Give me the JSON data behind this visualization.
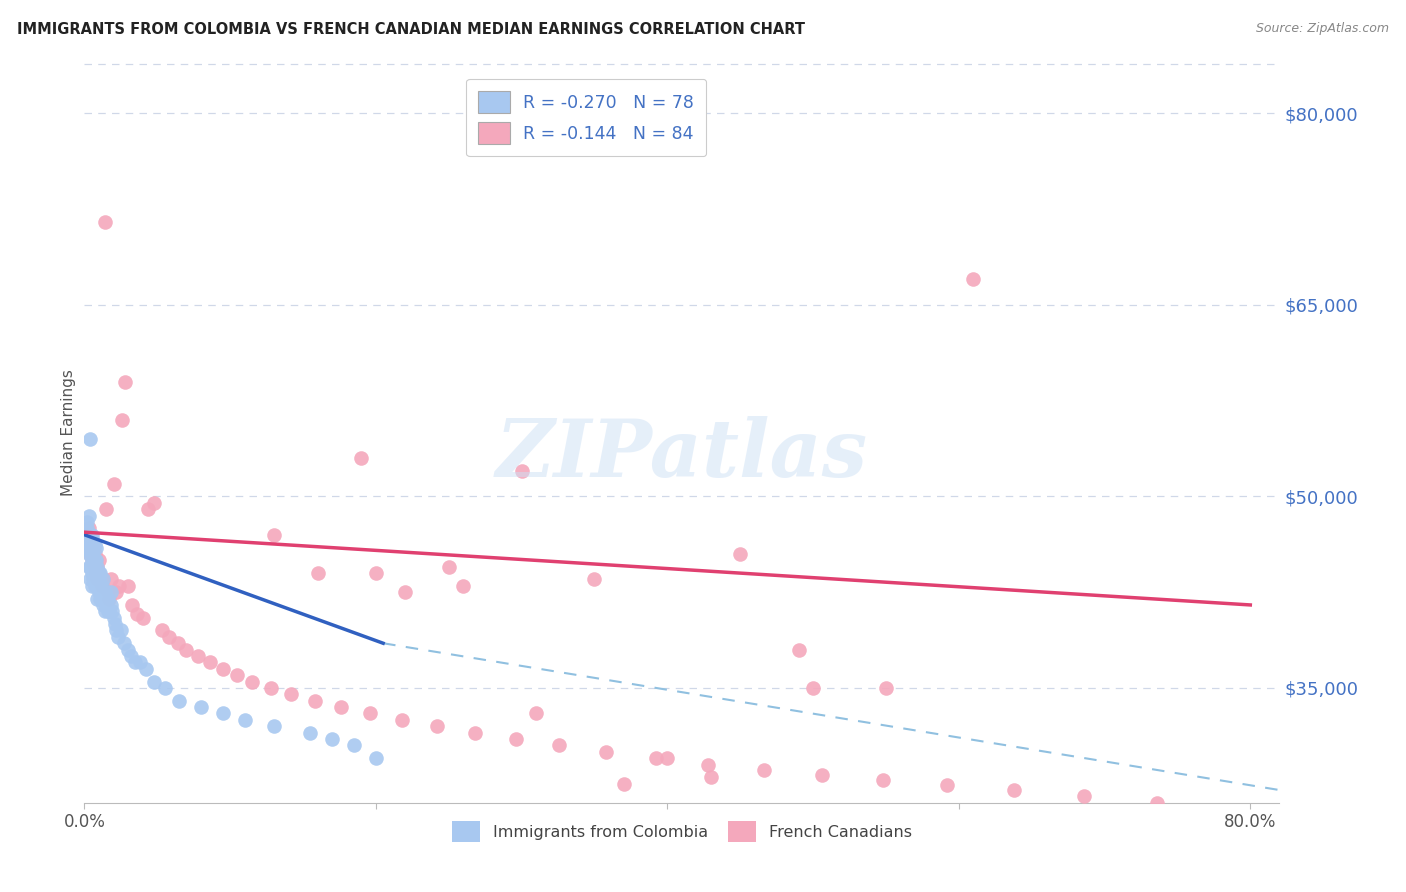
{
  "title": "IMMIGRANTS FROM COLOMBIA VS FRENCH CANADIAN MEDIAN EARNINGS CORRELATION CHART",
  "source": "Source: ZipAtlas.com",
  "ylabel": "Median Earnings",
  "watermark": "ZIPatlas",
  "blue_R": -0.27,
  "blue_N": 78,
  "pink_R": -0.144,
  "pink_N": 84,
  "blue_color": "#a8c8f0",
  "pink_color": "#f4a8bc",
  "blue_line_color": "#3060c0",
  "pink_line_color": "#e04070",
  "dashed_line_color": "#90c0e0",
  "right_axis_color": "#4472c4",
  "y_ticks": [
    35000,
    50000,
    65000,
    80000
  ],
  "y_tick_labels": [
    "$35,000",
    "$50,000",
    "$65,000",
    "$80,000"
  ],
  "ylim": [
    26000,
    84000
  ],
  "xlim": [
    0.0,
    0.82
  ],
  "blue_scatter_x": [
    0.001,
    0.001,
    0.002,
    0.002,
    0.002,
    0.002,
    0.003,
    0.003,
    0.003,
    0.003,
    0.003,
    0.004,
    0.004,
    0.004,
    0.004,
    0.005,
    0.005,
    0.005,
    0.005,
    0.005,
    0.006,
    0.006,
    0.006,
    0.006,
    0.007,
    0.007,
    0.007,
    0.007,
    0.008,
    0.008,
    0.008,
    0.008,
    0.009,
    0.009,
    0.009,
    0.01,
    0.01,
    0.01,
    0.011,
    0.011,
    0.011,
    0.012,
    0.012,
    0.013,
    0.013,
    0.013,
    0.014,
    0.014,
    0.015,
    0.015,
    0.016,
    0.016,
    0.017,
    0.018,
    0.018,
    0.019,
    0.02,
    0.021,
    0.022,
    0.023,
    0.025,
    0.027,
    0.03,
    0.032,
    0.035,
    0.038,
    0.042,
    0.048,
    0.055,
    0.065,
    0.08,
    0.095,
    0.11,
    0.13,
    0.155,
    0.17,
    0.185,
    0.2
  ],
  "blue_scatter_y": [
    46500,
    47200,
    45800,
    46200,
    47500,
    48000,
    44500,
    45500,
    46000,
    47000,
    48500,
    43500,
    44500,
    46000,
    54500,
    43000,
    44000,
    45000,
    46000,
    47000,
    43500,
    44500,
    45500,
    46500,
    43000,
    44200,
    45000,
    46200,
    43500,
    44000,
    45000,
    46000,
    42000,
    43500,
    44500,
    42500,
    43500,
    44000,
    42000,
    43000,
    44000,
    42500,
    43000,
    41500,
    42500,
    43500,
    41000,
    42500,
    41500,
    42000,
    41000,
    42000,
    41000,
    41500,
    42500,
    41000,
    40500,
    40000,
    39500,
    39000,
    39500,
    38500,
    38000,
    37500,
    37000,
    37000,
    36500,
    35500,
    35000,
    34000,
    33500,
    33000,
    32500,
    32000,
    31500,
    31000,
    30500,
    29500
  ],
  "pink_scatter_x": [
    0.001,
    0.002,
    0.003,
    0.003,
    0.004,
    0.004,
    0.005,
    0.005,
    0.006,
    0.006,
    0.007,
    0.007,
    0.008,
    0.008,
    0.009,
    0.009,
    0.01,
    0.01,
    0.011,
    0.012,
    0.013,
    0.014,
    0.015,
    0.016,
    0.017,
    0.018,
    0.02,
    0.022,
    0.024,
    0.026,
    0.028,
    0.03,
    0.033,
    0.036,
    0.04,
    0.044,
    0.048,
    0.053,
    0.058,
    0.064,
    0.07,
    0.078,
    0.086,
    0.095,
    0.105,
    0.115,
    0.128,
    0.142,
    0.158,
    0.176,
    0.196,
    0.218,
    0.242,
    0.268,
    0.296,
    0.326,
    0.358,
    0.392,
    0.428,
    0.466,
    0.506,
    0.548,
    0.592,
    0.638,
    0.686,
    0.736,
    0.2,
    0.25,
    0.3,
    0.35,
    0.4,
    0.45,
    0.5,
    0.13,
    0.16,
    0.19,
    0.22,
    0.26,
    0.31,
    0.37,
    0.43,
    0.49,
    0.55,
    0.61
  ],
  "pink_scatter_y": [
    47000,
    46500,
    46000,
    47500,
    45500,
    46500,
    45000,
    46200,
    44800,
    46000,
    44500,
    45500,
    44000,
    45000,
    43500,
    44500,
    44000,
    45000,
    43500,
    43000,
    43500,
    71500,
    49000,
    42500,
    42000,
    43500,
    51000,
    42500,
    43000,
    56000,
    59000,
    43000,
    41500,
    40800,
    40500,
    49000,
    49500,
    39500,
    39000,
    38500,
    38000,
    37500,
    37000,
    36500,
    36000,
    35500,
    35000,
    34500,
    34000,
    33500,
    33000,
    32500,
    32000,
    31500,
    31000,
    30500,
    30000,
    29500,
    29000,
    28600,
    28200,
    27800,
    27400,
    27000,
    26500,
    26000,
    44000,
    44500,
    52000,
    43500,
    29500,
    45500,
    35000,
    47000,
    44000,
    53000,
    42500,
    43000,
    33000,
    27500,
    28000,
    38000,
    35000,
    67000
  ],
  "blue_line_x0": 0.0,
  "blue_line_x1": 0.205,
  "blue_line_y0": 47000,
  "blue_line_y1": 38500,
  "pink_line_x0": 0.0,
  "pink_line_x1": 0.8,
  "pink_line_y0": 47200,
  "pink_line_y1": 41500,
  "dashed_line_x0": 0.205,
  "dashed_line_x1": 0.82,
  "dashed_line_y0": 38500,
  "dashed_line_y1": 27000,
  "legend_blue_label": "R = -0.270   N = 78",
  "legend_pink_label": "R = -0.144   N = 84",
  "bottom_legend_blue": "Immigrants from Colombia",
  "bottom_legend_pink": "French Canadians",
  "axis_label_color": "#4472c4",
  "tick_label_color": "#555555",
  "grid_color": "#d0d8e8",
  "background_color": "#ffffff"
}
